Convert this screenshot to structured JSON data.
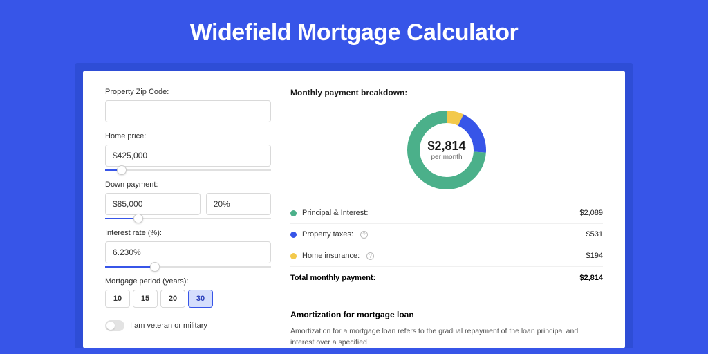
{
  "page": {
    "title": "Widefield Mortgage Calculator",
    "background_color": "#3755e8",
    "outer_card_color": "#2e4dd6",
    "inner_card_color": "#ffffff"
  },
  "form": {
    "zip": {
      "label": "Property Zip Code:",
      "value": ""
    },
    "home_price": {
      "label": "Home price:",
      "value": "$425,000",
      "slider_pct": 10
    },
    "down_payment": {
      "label": "Down payment:",
      "amount": "$85,000",
      "percent": "20%",
      "slider_pct": 20
    },
    "interest_rate": {
      "label": "Interest rate (%):",
      "value": "6.230%",
      "slider_pct": 30
    },
    "period": {
      "label": "Mortgage period (years):",
      "options": [
        "10",
        "15",
        "20",
        "30"
      ],
      "selected": "30"
    },
    "veteran": {
      "label": "I am veteran or military",
      "checked": false
    }
  },
  "breakdown": {
    "title": "Monthly payment breakdown:",
    "center_value": "$2,814",
    "center_sub": "per month",
    "items": [
      {
        "label": "Principal & Interest:",
        "value": "$2,089",
        "color": "#4bb08a",
        "pct": 74,
        "has_info": false
      },
      {
        "label": "Property taxes:",
        "value": "$531",
        "color": "#3755e8",
        "pct": 19,
        "has_info": true
      },
      {
        "label": "Home insurance:",
        "value": "$194",
        "color": "#f3c94b",
        "pct": 7,
        "has_info": true
      }
    ],
    "total_label": "Total monthly payment:",
    "total_value": "$2,814"
  },
  "amortization": {
    "title": "Amortization for mortgage loan",
    "text": "Amortization for a mortgage loan refers to the gradual repayment of the loan principal and interest over a specified"
  },
  "donut": {
    "radius": 48,
    "stroke": 18,
    "bg": "#ffffff"
  }
}
